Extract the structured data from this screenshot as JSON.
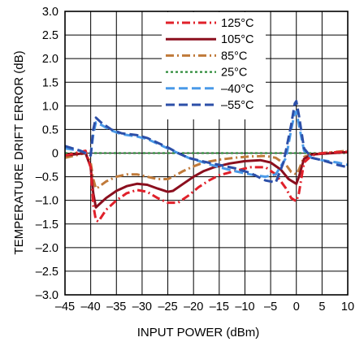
{
  "chart_data": {
    "type": "line",
    "title": "",
    "xlabel": "INPUT POWER (dBm)",
    "ylabel": "TEMPERATURE DRIFT ERROR (dB)",
    "xlim": [
      -45,
      10
    ],
    "ylim": [
      -3.0,
      3.0
    ],
    "x_ticks": [
      -45,
      -40,
      -35,
      -30,
      -25,
      -20,
      -15,
      -10,
      -5,
      0,
      5,
      10
    ],
    "x_tick_labels": [
      "–45",
      "–40",
      "–35",
      "–30",
      "–25",
      "–20",
      "–15",
      "–10",
      "–5",
      "0",
      "5",
      "10"
    ],
    "y_ticks": [
      3.0,
      2.5,
      2.0,
      1.5,
      1.0,
      0.5,
      0,
      -0.5,
      -1.0,
      -1.5,
      -2.0,
      -2.5,
      -3.0
    ],
    "y_tick_labels": [
      "3.0",
      "2.5",
      "2.0",
      "1.5",
      "1.0",
      "0.5",
      "0",
      "–0.5",
      "–1.0",
      "–1.5",
      "–2.0",
      "–2.5",
      "–3.0"
    ],
    "grid": true,
    "legend_position": "top-right",
    "series": [
      {
        "name": "125°C",
        "color": "#e0202a",
        "dash": "dashdot",
        "points": [
          [
            -45,
            -0.05
          ],
          [
            -41,
            0.05
          ],
          [
            -40,
            -0.3
          ],
          [
            -39.5,
            -1.1
          ],
          [
            -39,
            -1.42
          ],
          [
            -38.5,
            -1.45
          ],
          [
            -37,
            -1.2
          ],
          [
            -35,
            -1.0
          ],
          [
            -33,
            -0.85
          ],
          [
            -31,
            -0.78
          ],
          [
            -29,
            -0.82
          ],
          [
            -27,
            -0.95
          ],
          [
            -25,
            -1.05
          ],
          [
            -23,
            -1.05
          ],
          [
            -21,
            -0.9
          ],
          [
            -19,
            -0.72
          ],
          [
            -17,
            -0.58
          ],
          [
            -15,
            -0.47
          ],
          [
            -12,
            -0.38
          ],
          [
            -9,
            -0.3
          ],
          [
            -6,
            -0.3
          ],
          [
            -4,
            -0.45
          ],
          [
            -2,
            -0.75
          ],
          [
            -1,
            -0.95
          ],
          [
            0,
            -1.02
          ],
          [
            0.5,
            -0.85
          ],
          [
            1.5,
            -0.2
          ],
          [
            3,
            -0.05
          ],
          [
            5,
            0.0
          ],
          [
            8,
            0.02
          ],
          [
            10,
            0.03
          ]
        ]
      },
      {
        "name": "105°C",
        "color": "#8b0f1e",
        "dash": "solid",
        "points": [
          [
            -45,
            -0.05
          ],
          [
            -41,
            0.0
          ],
          [
            -40,
            -0.3
          ],
          [
            -39.5,
            -0.85
          ],
          [
            -39,
            -1.15
          ],
          [
            -38.5,
            -1.1
          ],
          [
            -37,
            -0.95
          ],
          [
            -35,
            -0.8
          ],
          [
            -33,
            -0.7
          ],
          [
            -31,
            -0.65
          ],
          [
            -29,
            -0.67
          ],
          [
            -27,
            -0.75
          ],
          [
            -25,
            -0.82
          ],
          [
            -24,
            -0.8
          ],
          [
            -22,
            -0.65
          ],
          [
            -20,
            -0.5
          ],
          [
            -18,
            -0.38
          ],
          [
            -16,
            -0.3
          ],
          [
            -13,
            -0.22
          ],
          [
            -10,
            -0.17
          ],
          [
            -7,
            -0.15
          ],
          [
            -5,
            -0.2
          ],
          [
            -3,
            -0.35
          ],
          [
            -1.5,
            -0.55
          ],
          [
            0,
            -0.65
          ],
          [
            0.5,
            -0.5
          ],
          [
            1.5,
            -0.12
          ],
          [
            3,
            -0.03
          ],
          [
            10,
            0.02
          ]
        ]
      },
      {
        "name": "85°C",
        "color": "#c07a3a",
        "dash": "dashdot",
        "points": [
          [
            -45,
            -0.1
          ],
          [
            -41,
            0.0
          ],
          [
            -40,
            -0.2
          ],
          [
            -39.5,
            -0.55
          ],
          [
            -39,
            -0.75
          ],
          [
            -38.5,
            -0.72
          ],
          [
            -37,
            -0.6
          ],
          [
            -35,
            -0.5
          ],
          [
            -33,
            -0.45
          ],
          [
            -31,
            -0.45
          ],
          [
            -29,
            -0.5
          ],
          [
            -27,
            -0.55
          ],
          [
            -25,
            -0.55
          ],
          [
            -24,
            -0.5
          ],
          [
            -22,
            -0.38
          ],
          [
            -20,
            -0.28
          ],
          [
            -18,
            -0.2
          ],
          [
            -15,
            -0.14
          ],
          [
            -12,
            -0.1
          ],
          [
            -9,
            -0.07
          ],
          [
            -6,
            -0.06
          ],
          [
            -4,
            -0.1
          ],
          [
            -2,
            -0.25
          ],
          [
            -1,
            -0.4
          ],
          [
            0,
            -0.45
          ],
          [
            0.5,
            -0.35
          ],
          [
            1.5,
            -0.08
          ],
          [
            3,
            -0.02
          ],
          [
            10,
            0.05
          ]
        ]
      },
      {
        "name": "25°C",
        "color": "#2e8b3a",
        "dash": "dotted",
        "points": [
          [
            -45,
            0.0
          ],
          [
            10,
            0.0
          ]
        ]
      },
      {
        "name": "–40°C",
        "color": "#4a9ae8",
        "dash": "longdash",
        "points": [
          [
            -45,
            0.1
          ],
          [
            -42,
            0.05
          ],
          [
            -40,
            -0.05
          ],
          [
            -39.5,
            0.4
          ],
          [
            -39,
            0.65
          ],
          [
            -38,
            0.6
          ],
          [
            -36,
            0.48
          ],
          [
            -34,
            0.4
          ],
          [
            -31,
            0.35
          ],
          [
            -29,
            0.3
          ],
          [
            -27,
            0.2
          ],
          [
            -25,
            0.1
          ],
          [
            -23,
            0.0
          ],
          [
            -21,
            -0.1
          ],
          [
            -18,
            -0.2
          ],
          [
            -15,
            -0.3
          ],
          [
            -12,
            -0.38
          ],
          [
            -9,
            -0.45
          ],
          [
            -6,
            -0.5
          ],
          [
            -4,
            -0.45
          ],
          [
            -2,
            -0.1
          ],
          [
            -1,
            0.5
          ],
          [
            -0.3,
            0.85
          ],
          [
            0,
            0.88
          ],
          [
            0.5,
            0.6
          ],
          [
            1.5,
            0.05
          ],
          [
            3,
            -0.1
          ],
          [
            5,
            -0.15
          ],
          [
            8,
            -0.2
          ],
          [
            10,
            -0.25
          ]
        ]
      },
      {
        "name": "–55°C",
        "color": "#2c4fa8",
        "dash": "longdash",
        "points": [
          [
            -45,
            0.15
          ],
          [
            -42,
            0.05
          ],
          [
            -40,
            -0.05
          ],
          [
            -39.5,
            0.5
          ],
          [
            -39,
            0.75
          ],
          [
            -38,
            0.65
          ],
          [
            -36,
            0.5
          ],
          [
            -34,
            0.42
          ],
          [
            -31,
            0.38
          ],
          [
            -29,
            0.32
          ],
          [
            -27,
            0.22
          ],
          [
            -25,
            0.12
          ],
          [
            -23,
            0.0
          ],
          [
            -21,
            -0.1
          ],
          [
            -18,
            -0.18
          ],
          [
            -15,
            -0.25
          ],
          [
            -12,
            -0.32
          ],
          [
            -9,
            -0.42
          ],
          [
            -6,
            -0.58
          ],
          [
            -4,
            -0.62
          ],
          [
            -2.5,
            -0.2
          ],
          [
            -1,
            0.6
          ],
          [
            -0.3,
            1.05
          ],
          [
            0,
            1.1
          ],
          [
            0.5,
            0.8
          ],
          [
            1.5,
            0.1
          ],
          [
            3,
            -0.1
          ],
          [
            5,
            -0.15
          ],
          [
            8,
            -0.25
          ],
          [
            10,
            -0.3
          ]
        ]
      }
    ]
  }
}
